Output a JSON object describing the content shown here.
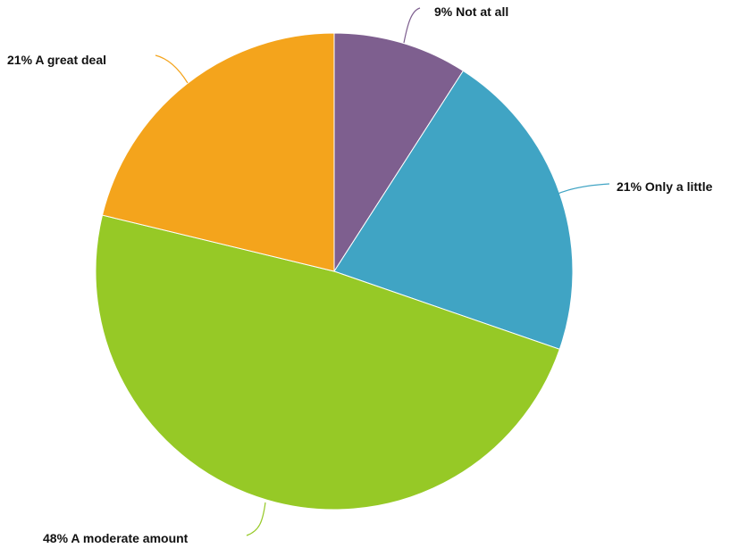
{
  "chart_data": {
    "type": "pie",
    "slices": [
      {
        "label": "Not at all",
        "value": 9,
        "display": "9% Not at all",
        "color": "#7E5F8F"
      },
      {
        "label": "Only a little",
        "value": 21,
        "display": "21% Only a little",
        "color": "#40A4C4"
      },
      {
        "label": "A moderate amount",
        "value": 48,
        "display": "48% A moderate amount",
        "color": "#96C926"
      },
      {
        "label": "A great deal",
        "value": 21,
        "display": "21% A great deal",
        "color": "#F4A41C"
      }
    ],
    "start": "12 o'clock",
    "direction": "clockwise",
    "legend": "none"
  }
}
